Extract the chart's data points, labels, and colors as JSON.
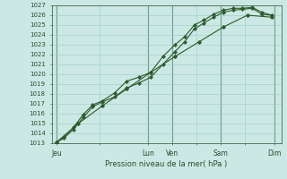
{
  "bg_color": "#cce8e4",
  "grid_color_major": "#3d6b50",
  "grid_color_minor": "#99ccc4",
  "line_color": "#2d5a2d",
  "xlabel": "Pression niveau de la mer( hPa )",
  "ylim": [
    1013,
    1027
  ],
  "xlim": [
    0,
    9.5
  ],
  "yticks": [
    1013,
    1014,
    1015,
    1016,
    1017,
    1018,
    1019,
    1020,
    1021,
    1022,
    1023,
    1024,
    1025,
    1026,
    1027
  ],
  "xtick_labels": [
    "Jeu",
    "",
    "Lun",
    "Ven",
    "",
    "Sam",
    "",
    "Dim"
  ],
  "xtick_positions": [
    0.2,
    2.0,
    4.0,
    5.0,
    6.0,
    7.0,
    8.0,
    9.2
  ],
  "vline_positions": [
    0.2,
    4.0,
    5.0,
    7.0,
    9.2
  ],
  "line1_x": [
    0.2,
    0.5,
    0.9,
    1.3,
    1.7,
    2.1,
    2.6,
    3.1,
    3.6,
    4.1,
    4.6,
    5.1,
    5.5,
    5.9,
    6.3,
    6.7,
    7.1,
    7.5,
    7.9,
    8.3,
    8.7,
    9.1
  ],
  "line1_y": [
    1013.1,
    1013.5,
    1014.4,
    1015.6,
    1016.7,
    1017.2,
    1017.7,
    1018.6,
    1019.1,
    1019.7,
    1021.0,
    1022.3,
    1023.3,
    1024.6,
    1025.2,
    1025.8,
    1026.3,
    1026.5,
    1026.6,
    1026.7,
    1026.1,
    1026.0
  ],
  "line2_x": [
    0.2,
    0.5,
    0.9,
    1.3,
    1.7,
    2.1,
    2.6,
    3.1,
    3.6,
    4.1,
    4.6,
    5.1,
    5.5,
    5.9,
    6.3,
    6.7,
    7.1,
    7.5,
    7.9,
    8.3,
    8.7,
    9.1
  ],
  "line2_y": [
    1013.1,
    1013.6,
    1014.6,
    1015.9,
    1016.9,
    1017.3,
    1018.1,
    1019.3,
    1019.7,
    1020.2,
    1021.8,
    1023.0,
    1023.8,
    1025.0,
    1025.5,
    1026.1,
    1026.5,
    1026.7,
    1026.7,
    1026.8,
    1026.3,
    1026.0
  ],
  "line3_x": [
    0.2,
    1.1,
    2.1,
    3.1,
    4.1,
    5.1,
    6.1,
    7.1,
    8.1,
    9.1
  ],
  "line3_y": [
    1013.1,
    1015.0,
    1016.8,
    1018.5,
    1020.2,
    1021.8,
    1023.3,
    1024.8,
    1026.0,
    1025.8
  ]
}
